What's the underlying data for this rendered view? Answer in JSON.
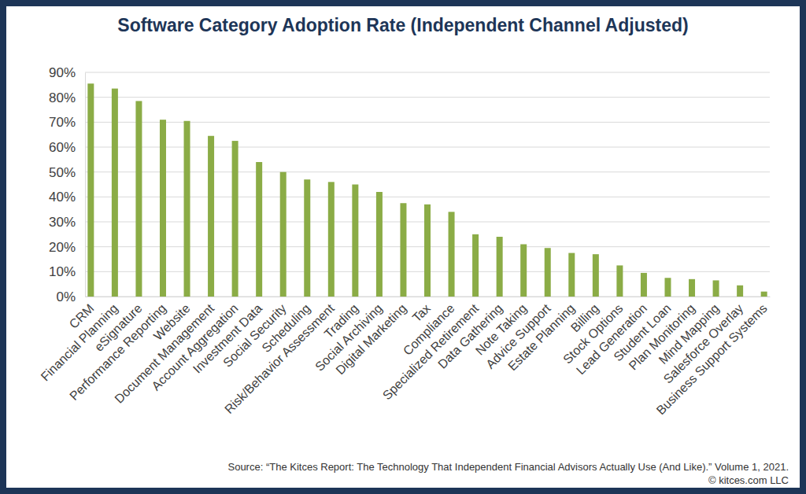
{
  "chart_data": {
    "type": "bar",
    "title": "Software Category Adoption Rate (Independent Channel Adjusted)",
    "categories": [
      "CRM",
      "Financial Planning",
      "eSignature",
      "Performance Reporting",
      "Website",
      "Document Management",
      "Account Aggregation",
      "Investment Data",
      "Social Security",
      "Scheduling",
      "Risk/Behavior Assessment",
      "Trading",
      "Social Archiving",
      "Digital Marketing",
      "Tax",
      "Compliance",
      "Specialized Retirement",
      "Data Gathering",
      "Note Taking",
      "Advice Support",
      "Estate Planning",
      "Billing",
      "Stock Options",
      "Lead Generation",
      "Student Loan",
      "Plan Monitoring",
      "Mind Mapping",
      "Salesforce Overlay",
      "Business Support Systems"
    ],
    "values": [
      85.5,
      83.5,
      78.5,
      71,
      70.5,
      64.5,
      62.5,
      54,
      50,
      47,
      46,
      45,
      42,
      37.5,
      37,
      34,
      25,
      24,
      21,
      19.5,
      17.5,
      17,
      12.5,
      9.5,
      7.5,
      7,
      6.5,
      4.5,
      2
    ],
    "color": "#8bac46",
    "ylim": [
      0,
      90
    ],
    "yticks": [
      {
        "value": 0,
        "label": "0%"
      },
      {
        "value": 10,
        "label": "10%"
      },
      {
        "value": 20,
        "label": "20%"
      },
      {
        "value": 30,
        "label": "30%"
      },
      {
        "value": 40,
        "label": "40%"
      },
      {
        "value": 50,
        "label": "50%"
      },
      {
        "value": 60,
        "label": "60%"
      },
      {
        "value": 70,
        "label": "70%"
      },
      {
        "value": 80,
        "label": "80%"
      },
      {
        "value": 90,
        "label": "90%"
      }
    ],
    "grid": true,
    "annotations": [
      "Source: “The Kitces Report: The Technology That Independent Financial Advisors Actually Use (And Like).” Volume 1, 2021.",
      "© kitces.com LLC"
    ]
  }
}
